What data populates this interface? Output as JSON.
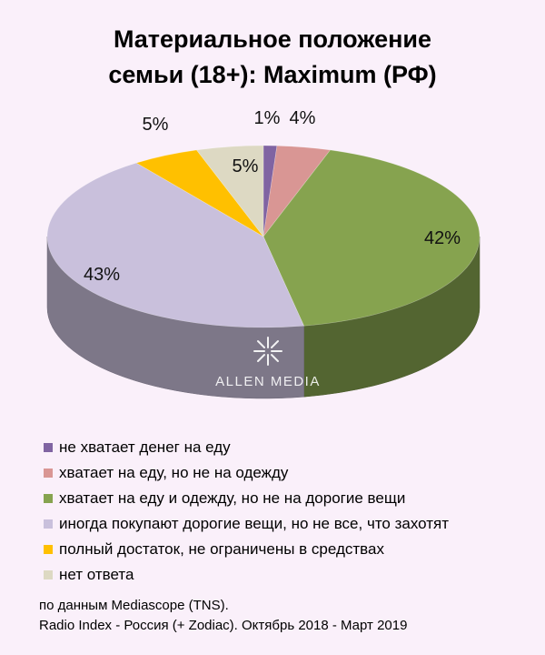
{
  "title": {
    "line1": "Материальное положение",
    "line2": "семьи (18+): Maximum (РФ)"
  },
  "chart_data": {
    "type": "pie",
    "title": "Материальное положение семьи (18+): Maximum (РФ)",
    "slices": [
      {
        "label": "не хватает денег на еду",
        "value": 1,
        "display": "1%",
        "color": "#8064a2"
      },
      {
        "label": "хватает на еду, но не на одежду",
        "value": 4,
        "display": "4%",
        "color": "#d99694"
      },
      {
        "label": "хватает на еду и одежду, но не на дорогие вещи",
        "value": 42,
        "display": "42%",
        "color": "#86a34f"
      },
      {
        "label": "иногда покупают дорогие вещи, но не все, что захотят",
        "value": 43,
        "display": "43%",
        "color": "#c9c0dc"
      },
      {
        "label": "полный достаток, не ограничены в средствах",
        "value": 5,
        "display": "5%",
        "color": "#ffc000"
      },
      {
        "label": "нет ответа",
        "value": 5,
        "display": "5%",
        "color": "#ddd9c3"
      }
    ],
    "legend_position": "bottom-left"
  },
  "watermark": {
    "text": "ALLEN MEDIA"
  },
  "source": {
    "line1": "по данным Mediascope (TNS).",
    "line2": "Radio Index - Россия (+ Zodiac). Октябрь 2018 - Март 2019"
  }
}
